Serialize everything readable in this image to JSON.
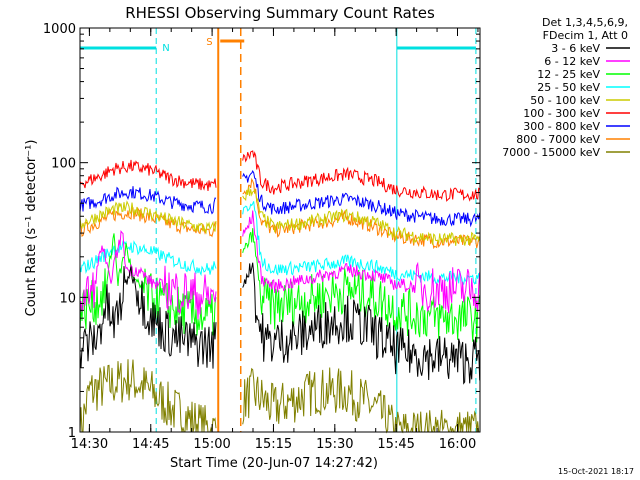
{
  "chart_data": {
    "type": "line",
    "title": "RHESSI Observing Summary Count Rates",
    "xlabel": "Start Time (20-Jun-07 14:27:42)",
    "ylabel": "Count Rate (s⁻¹ detector⁻¹)",
    "yscale": "log",
    "xlim": [
      "14:27:42",
      "16:05:30"
    ],
    "ylim": [
      1,
      1000
    ],
    "x_ticks": [
      "14:30",
      "14:45",
      "15:00",
      "15:15",
      "15:30",
      "15:45",
      "16:00"
    ],
    "y_ticks": [
      "1",
      "10",
      "100",
      "1000"
    ],
    "legend_header": [
      "Det 1,3,4,5,6,9,",
      "FDecim 1, Att 0"
    ],
    "legend_position": "right",
    "series": [
      {
        "name": "3 - 6 keV",
        "color": "#000000",
        "points": [
          [
            "14:27:42",
            4.2
          ],
          [
            "14:32",
            5
          ],
          [
            "14:34",
            9
          ],
          [
            "14:36",
            6
          ],
          [
            "14:39",
            13
          ],
          [
            "14:40",
            16
          ],
          [
            "14:42",
            11
          ],
          [
            "14:45",
            7
          ],
          [
            "14:50",
            5.2
          ],
          [
            "14:55",
            4.6
          ],
          [
            "15:00",
            4.3
          ],
          [
            "15:10",
            18
          ],
          [
            "15:11",
            7
          ],
          [
            "15:13",
            4.6
          ],
          [
            "15:20",
            5
          ],
          [
            "15:28",
            6.5
          ],
          [
            "15:33",
            7
          ],
          [
            "15:38",
            6
          ],
          [
            "15:45",
            4
          ],
          [
            "15:55",
            3.6
          ],
          [
            "16:02",
            3.4
          ],
          [
            "16:04",
            3.5
          ]
        ]
      },
      {
        "name": "6 - 12 keV",
        "color": "#ff00ff",
        "points": [
          [
            "14:27:42",
            10
          ],
          [
            "14:31",
            11
          ],
          [
            "14:33",
            25
          ],
          [
            "14:35",
            13
          ],
          [
            "14:38",
            31
          ],
          [
            "14:39",
            16
          ],
          [
            "14:42",
            16
          ],
          [
            "14:45",
            13
          ],
          [
            "14:50",
            11.5
          ],
          [
            "14:55",
            10.5
          ],
          [
            "15:00",
            10
          ],
          [
            "15:10",
            40
          ],
          [
            "15:12",
            14
          ],
          [
            "15:15",
            12
          ],
          [
            "15:25",
            14
          ],
          [
            "15:33",
            16
          ],
          [
            "15:40",
            14.5
          ],
          [
            "15:45",
            12.5
          ],
          [
            "15:55",
            11.5
          ],
          [
            "16:04",
            11.5
          ]
        ]
      },
      {
        "name": "12 - 25 keV",
        "color": "#00ff00",
        "points": [
          [
            "14:27:42",
            8
          ],
          [
            "14:31",
            9
          ],
          [
            "14:34",
            11
          ],
          [
            "14:36",
            30
          ],
          [
            "14:37",
            13
          ],
          [
            "14:39",
            24
          ],
          [
            "14:41",
            13
          ],
          [
            "14:45",
            10
          ],
          [
            "14:50",
            8.5
          ],
          [
            "14:55",
            7.5
          ],
          [
            "15:00",
            7
          ],
          [
            "15:10",
            30
          ],
          [
            "15:12",
            10
          ],
          [
            "15:15",
            8.5
          ],
          [
            "15:25",
            10
          ],
          [
            "15:33",
            11.5
          ],
          [
            "15:40",
            10
          ],
          [
            "15:45",
            8
          ],
          [
            "15:55",
            7
          ],
          [
            "16:04",
            7
          ]
        ]
      },
      {
        "name": "25 - 50 keV",
        "color": "#00ffff",
        "points": [
          [
            "14:27:42",
            16
          ],
          [
            "14:32",
            19
          ],
          [
            "14:36",
            23
          ],
          [
            "14:40",
            24
          ],
          [
            "14:45",
            22
          ],
          [
            "14:50",
            19
          ],
          [
            "14:55",
            17
          ],
          [
            "15:00",
            16
          ],
          [
            "15:10",
            55
          ],
          [
            "15:12",
            19
          ],
          [
            "15:15",
            16
          ],
          [
            "15:25",
            17
          ],
          [
            "15:33",
            18.5
          ],
          [
            "15:40",
            17
          ],
          [
            "15:45",
            15
          ],
          [
            "15:55",
            14
          ],
          [
            "16:04",
            14
          ]
        ]
      },
      {
        "name": "50 - 100 keV",
        "color": "#cccc00",
        "points": [
          [
            "14:27:42",
            35
          ],
          [
            "14:32",
            40
          ],
          [
            "14:36",
            45
          ],
          [
            "14:40",
            46
          ],
          [
            "14:45",
            42
          ],
          [
            "14:50",
            37
          ],
          [
            "14:55",
            34
          ],
          [
            "15:00",
            32
          ],
          [
            "15:10",
            65
          ],
          [
            "15:12",
            40
          ],
          [
            "15:15",
            33
          ],
          [
            "15:25",
            37
          ],
          [
            "15:33",
            41
          ],
          [
            "15:40",
            36
          ],
          [
            "15:45",
            30
          ],
          [
            "15:55",
            27
          ],
          [
            "16:04",
            27
          ]
        ]
      },
      {
        "name": "100 - 300 keV",
        "color": "#ff0000",
        "points": [
          [
            "14:27:42",
            70
          ],
          [
            "14:32",
            78
          ],
          [
            "14:36",
            90
          ],
          [
            "14:40",
            94
          ],
          [
            "14:45",
            88
          ],
          [
            "14:50",
            76
          ],
          [
            "14:55",
            70
          ],
          [
            "15:00",
            67
          ],
          [
            "15:10",
            120
          ],
          [
            "15:12",
            72
          ],
          [
            "15:15",
            65
          ],
          [
            "15:25",
            75
          ],
          [
            "15:33",
            82
          ],
          [
            "15:40",
            73
          ],
          [
            "15:45",
            63
          ],
          [
            "15:55",
            58
          ],
          [
            "16:04",
            58
          ]
        ]
      },
      {
        "name": "300 - 800 keV",
        "color": "#0000ff",
        "points": [
          [
            "14:27:42",
            48
          ],
          [
            "14:32",
            52
          ],
          [
            "14:36",
            58
          ],
          [
            "14:40",
            61
          ],
          [
            "14:45",
            57
          ],
          [
            "14:50",
            51
          ],
          [
            "14:55",
            48
          ],
          [
            "15:00",
            47
          ],
          [
            "15:10",
            85
          ],
          [
            "15:12",
            52
          ],
          [
            "15:15",
            45
          ],
          [
            "15:25",
            50
          ],
          [
            "15:33",
            54
          ],
          [
            "15:40",
            48
          ],
          [
            "15:45",
            42
          ],
          [
            "15:55",
            38
          ],
          [
            "16:04",
            38
          ]
        ]
      },
      {
        "name": "800 - 7000 keV",
        "color": "#ff8000",
        "points": [
          [
            "14:27:42",
            31
          ],
          [
            "14:32",
            36
          ],
          [
            "14:36",
            41
          ],
          [
            "14:40",
            43
          ],
          [
            "14:45",
            39
          ],
          [
            "14:50",
            35
          ],
          [
            "14:55",
            32
          ],
          [
            "15:00",
            31
          ],
          [
            "15:10",
            75
          ],
          [
            "15:12",
            37
          ],
          [
            "15:15",
            31
          ],
          [
            "15:25",
            35
          ],
          [
            "15:33",
            39
          ],
          [
            "15:40",
            33
          ],
          [
            "15:45",
            28
          ],
          [
            "15:55",
            26
          ],
          [
            "16:04",
            26
          ]
        ]
      },
      {
        "name": "7000 - 15000 keV",
        "color": "#808000",
        "points": [
          [
            "14:27:42",
            1
          ],
          [
            "14:30",
            2
          ],
          [
            "14:40",
            2.5
          ],
          [
            "14:45",
            2
          ],
          [
            "14:50",
            1.5
          ],
          [
            "15:00",
            1
          ],
          [
            "15:10",
            2
          ],
          [
            "15:15",
            1.5
          ],
          [
            "15:25",
            2
          ],
          [
            "15:33",
            2
          ],
          [
            "15:40",
            1.5
          ],
          [
            "15:45",
            1
          ],
          [
            "16:04",
            1
          ]
        ]
      }
    ],
    "annotations": [
      {
        "label": "N",
        "type": "night",
        "color": "#00e0e0",
        "start": "14:27:42",
        "end": "14:46:20"
      },
      {
        "label": "",
        "type": "night",
        "color": "#00e0e0",
        "start": "15:45:10",
        "end": "16:04:30"
      },
      {
        "label": "S",
        "type": "saa",
        "color": "#ff8000",
        "start": "15:01:30",
        "end": "15:07:00"
      }
    ],
    "grid": false
  },
  "timestamp": "15-Oct-2021 18:17"
}
